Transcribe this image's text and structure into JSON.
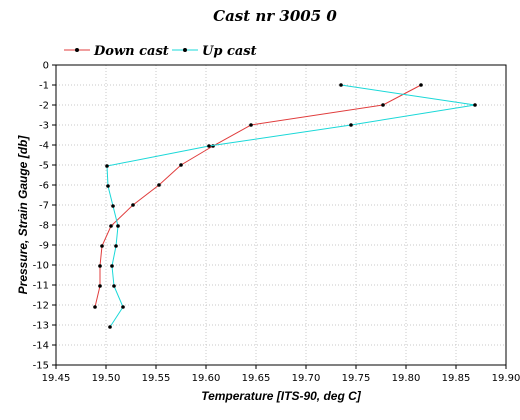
{
  "chart_data": {
    "type": "line",
    "title": "Cast nr 3005 0",
    "xlabel": "Temperature [ITS-90, deg C]",
    "ylabel": "Pressure, Strain Gauge [db]",
    "xlim": [
      19.45,
      19.9
    ],
    "ylim": [
      -15,
      0
    ],
    "xticks": [
      "19.45",
      "19.50",
      "19.55",
      "19.60",
      "19.65",
      "19.70",
      "19.75",
      "19.80",
      "19.85",
      "19.90"
    ],
    "yticks": [
      "0",
      "-1",
      "-2",
      "-3",
      "-4",
      "-5",
      "-6",
      "-7",
      "-8",
      "-9",
      "-10",
      "-11",
      "-12",
      "-13",
      "-14",
      "-15"
    ],
    "grid": true,
    "legend_position": "top-left",
    "series": [
      {
        "name": "Down cast",
        "color": "#e03c3c",
        "x": [
          19.815,
          19.777,
          19.645,
          19.607,
          19.575,
          19.553,
          19.527,
          19.505,
          19.496,
          19.494,
          19.494,
          19.489
        ],
        "y": [
          -1,
          -2,
          -3,
          -4.05,
          -5,
          -6,
          -7,
          -8.05,
          -9.05,
          -10.05,
          -11.05,
          -12.1
        ]
      },
      {
        "name": "Up cast",
        "color": "#1ad8d8",
        "x": [
          19.735,
          19.869,
          19.745,
          19.603,
          19.501,
          19.502,
          19.507,
          19.512,
          19.51,
          19.506,
          19.508,
          19.517,
          19.504
        ],
        "y": [
          -1,
          -2,
          -3,
          -4.05,
          -5.05,
          -6.05,
          -7.05,
          -8.05,
          -9.05,
          -10.05,
          -11.05,
          -12.1,
          -13.1
        ]
      }
    ]
  }
}
